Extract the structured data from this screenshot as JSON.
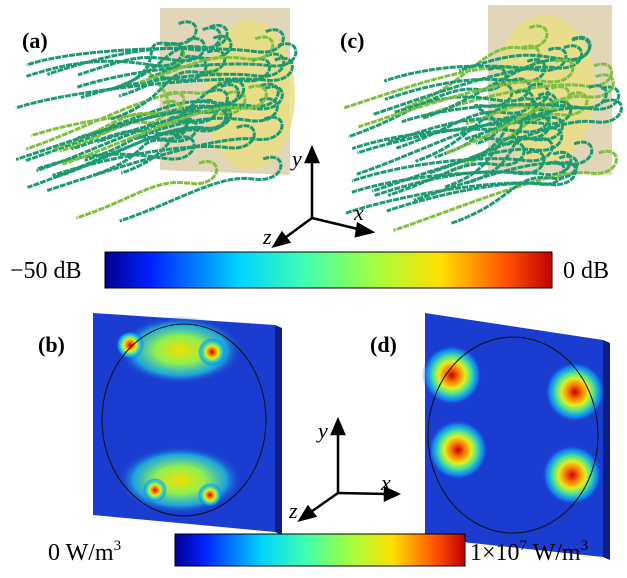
{
  "panels": [
    {
      "label": "(a)"
    },
    {
      "label": "(c)"
    },
    {
      "label": "(b)"
    },
    {
      "label": "(d)"
    }
  ],
  "axes_top": {
    "x": "x",
    "y": "y",
    "z": "z"
  },
  "axes_bottom": {
    "x": "x",
    "y": "y",
    "z": "z"
  },
  "colorbar_db": {
    "min_label": "−50 dB",
    "max_label": "0 dB"
  },
  "colorbar_power": {
    "min_label": "0 W/m",
    "min_sup": "3",
    "max_base": "1×10",
    "max_exp": "7",
    "max_unit": " W/m",
    "max_sup": "3"
  }
}
